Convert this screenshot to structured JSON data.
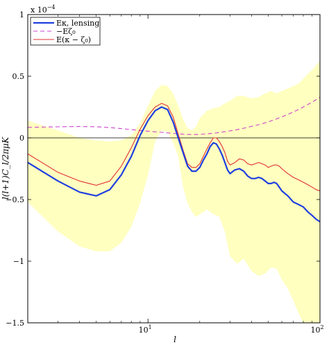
{
  "chart_data": {
    "type": "line",
    "xlabel": "l",
    "ylabel": "l(l+1)C_l/2πμK",
    "xscale": "log",
    "xlim": [
      2,
      100
    ],
    "ylim": [
      -1.5,
      1.0
    ],
    "y_multiplier_label": "x 10",
    "y_multiplier_exponent": "−4",
    "x_ticks": [
      {
        "value": 10,
        "base": "10",
        "exp": "1"
      },
      {
        "value": 100,
        "base": "10",
        "exp": "2"
      }
    ],
    "y_ticks": [
      {
        "value": 1.0,
        "label": "1"
      },
      {
        "value": 0.5,
        "label": "0.5"
      },
      {
        "value": 0.0,
        "label": "0"
      },
      {
        "value": -0.5,
        "label": "−0.5"
      },
      {
        "value": -1.0,
        "label": "−1"
      },
      {
        "value": -1.5,
        "label": "−1.5"
      }
    ],
    "legend_position": "top-left",
    "zero_line": true,
    "band": {
      "color": "#ffffc0",
      "x": [
        2,
        3,
        4,
        5,
        6,
        7,
        8,
        9,
        10,
        11,
        12,
        13,
        14,
        15,
        16,
        17,
        18,
        19,
        20,
        22,
        24,
        26,
        28,
        30,
        33,
        36,
        40,
        44,
        48,
        52,
        56,
        60,
        65,
        70,
        75,
        80,
        85,
        90,
        95,
        100
      ],
      "upper": [
        0.14,
        0.06,
        0.0,
        -0.02,
        -0.03,
        -0.02,
        0.02,
        0.12,
        0.26,
        0.38,
        0.43,
        0.42,
        0.36,
        0.26,
        0.15,
        0.08,
        0.06,
        0.09,
        0.16,
        0.22,
        0.24,
        0.25,
        0.28,
        0.3,
        0.34,
        0.34,
        0.32,
        0.33,
        0.36,
        0.38,
        0.36,
        0.38,
        0.4,
        0.42,
        0.44,
        0.48,
        0.52,
        0.55,
        0.59,
        0.62
      ],
      "lower": [
        -0.52,
        -0.76,
        -0.88,
        -0.92,
        -0.92,
        -0.85,
        -0.72,
        -0.53,
        -0.3,
        -0.03,
        0.06,
        0.05,
        -0.04,
        -0.15,
        -0.4,
        -0.53,
        -0.6,
        -0.64,
        -0.62,
        -0.58,
        -0.62,
        -0.64,
        -0.76,
        -0.96,
        -1.02,
        -0.98,
        -1.08,
        -1.12,
        -1.1,
        -1.05,
        -1.06,
        -1.15,
        -1.22,
        -1.32,
        -1.42,
        -1.5,
        -1.5,
        -1.5,
        -1.5,
        -1.5
      ]
    },
    "series": [
      {
        "name": "Eκ, lensing",
        "color": "#1f3fe0",
        "width": 2.2,
        "dash": "",
        "x": [
          2,
          3,
          4,
          5,
          6,
          7,
          8,
          9,
          10,
          11,
          12,
          13,
          14,
          15,
          16,
          17,
          18,
          19,
          20,
          21,
          22,
          23,
          24,
          25,
          26,
          27,
          28,
          29,
          30,
          32,
          34,
          36,
          38,
          40,
          42,
          44,
          46,
          48,
          50,
          52,
          54,
          56,
          58,
          60,
          65,
          70,
          75,
          80,
          85,
          90,
          95,
          100
        ],
        "y": [
          -0.2,
          -0.35,
          -0.44,
          -0.47,
          -0.42,
          -0.3,
          -0.15,
          0.02,
          0.14,
          0.22,
          0.25,
          0.23,
          0.13,
          0.0,
          -0.12,
          -0.23,
          -0.27,
          -0.27,
          -0.24,
          -0.18,
          -0.13,
          -0.07,
          -0.04,
          -0.05,
          -0.09,
          -0.14,
          -0.2,
          -0.26,
          -0.29,
          -0.26,
          -0.25,
          -0.27,
          -0.31,
          -0.33,
          -0.33,
          -0.32,
          -0.33,
          -0.35,
          -0.37,
          -0.37,
          -0.36,
          -0.37,
          -0.4,
          -0.43,
          -0.47,
          -0.52,
          -0.54,
          -0.56,
          -0.6,
          -0.63,
          -0.66,
          -0.68
        ]
      },
      {
        "name": "−Eζ₀",
        "color": "#cc44cc",
        "width": 1.1,
        "dash": "6,4",
        "x": [
          2,
          3,
          4,
          5,
          6,
          7,
          8,
          9,
          10,
          12,
          14,
          16,
          18,
          20,
          24,
          28,
          32,
          36,
          40,
          45,
          50,
          55,
          60,
          65,
          70,
          75,
          80,
          85,
          90,
          95,
          100
        ],
        "y": [
          0.085,
          0.09,
          0.092,
          0.09,
          0.083,
          0.075,
          0.067,
          0.06,
          0.054,
          0.045,
          0.036,
          0.03,
          0.027,
          0.028,
          0.037,
          0.05,
          0.063,
          0.078,
          0.093,
          0.11,
          0.13,
          0.15,
          0.17,
          0.19,
          0.21,
          0.23,
          0.25,
          0.27,
          0.29,
          0.31,
          0.33
        ]
      },
      {
        "name": "E(κ − ζ₀)",
        "color": "#e03030",
        "width": 1.1,
        "dash": "",
        "x": [
          2,
          3,
          4,
          5,
          6,
          7,
          8,
          9,
          10,
          11,
          12,
          13,
          14,
          15,
          16,
          17,
          18,
          19,
          20,
          21,
          22,
          23,
          24,
          25,
          26,
          27,
          28,
          29,
          30,
          32,
          34,
          36,
          38,
          40,
          42,
          44,
          46,
          48,
          50,
          52,
          54,
          56,
          58,
          60,
          65,
          70,
          75,
          80,
          85,
          90,
          95,
          100
        ],
        "y": [
          -0.13,
          -0.28,
          -0.35,
          -0.385,
          -0.35,
          -0.23,
          -0.08,
          0.07,
          0.18,
          0.25,
          0.28,
          0.26,
          0.17,
          0.03,
          -0.1,
          -0.21,
          -0.24,
          -0.24,
          -0.21,
          -0.15,
          -0.09,
          -0.04,
          0.0,
          0.0,
          -0.03,
          -0.07,
          -0.12,
          -0.19,
          -0.22,
          -0.2,
          -0.17,
          -0.18,
          -0.21,
          -0.22,
          -0.21,
          -0.2,
          -0.21,
          -0.22,
          -0.24,
          -0.23,
          -0.22,
          -0.22,
          -0.23,
          -0.25,
          -0.29,
          -0.32,
          -0.34,
          -0.36,
          -0.38,
          -0.4,
          -0.42,
          -0.43
        ]
      }
    ]
  }
}
